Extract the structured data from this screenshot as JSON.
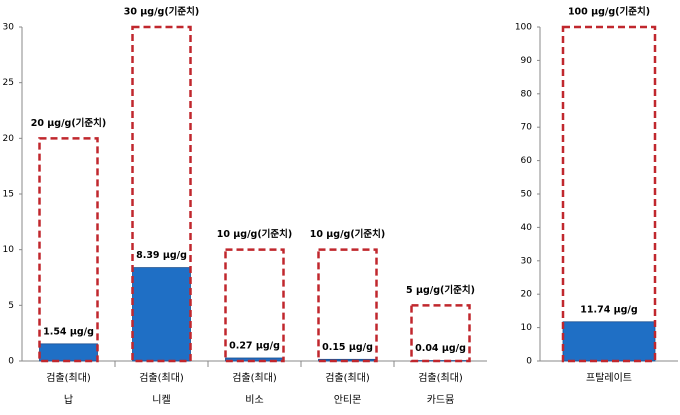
{
  "chart_data": [
    {
      "type": "bar",
      "categories": [
        "납",
        "니켈",
        "비소",
        "안티몬",
        "카드뮴"
      ],
      "subcategories": [
        "검출(최대)",
        "검출(최대)",
        "검출(최대)",
        "검출(최대)",
        "검출(최대)"
      ],
      "series": [
        {
          "color": "#1f6fc5",
          "values": [
            1.54,
            8.39,
            0.27,
            0.15,
            0.04
          ],
          "value_labels": [
            "1.54 μg/g",
            "8.39 μg/g",
            "0.27 μg/g",
            "0.15 μg/g",
            "0.04 μg/g"
          ]
        },
        {
          "color": "#c0272d",
          "style": "dashed",
          "values": [
            20,
            30,
            10,
            10,
            5
          ],
          "value_labels": [
            "20 μg/g(기준치)",
            "30 μg/g(기준치)",
            "10 μg/g(기준치)",
            "10 μg/g(기준치)",
            "5 μg/g(기준치)"
          ]
        }
      ],
      "ylim": [
        0,
        30
      ],
      "yticks": [
        0,
        5,
        10,
        15,
        20,
        25,
        30
      ]
    },
    {
      "type": "bar",
      "categories": [
        "프탈레이트"
      ],
      "series": [
        {
          "color": "#1f6fc5",
          "values": [
            11.74
          ],
          "value_labels": [
            "11.74 μg/g"
          ]
        },
        {
          "color": "#c0272d",
          "style": "dashed",
          "values": [
            100
          ],
          "value_labels": [
            "100 μg/g(기준치)"
          ]
        }
      ],
      "ylim": [
        0,
        100
      ],
      "yticks": [
        0,
        10,
        20,
        30,
        40,
        50,
        60,
        70,
        80,
        90,
        100
      ]
    }
  ]
}
